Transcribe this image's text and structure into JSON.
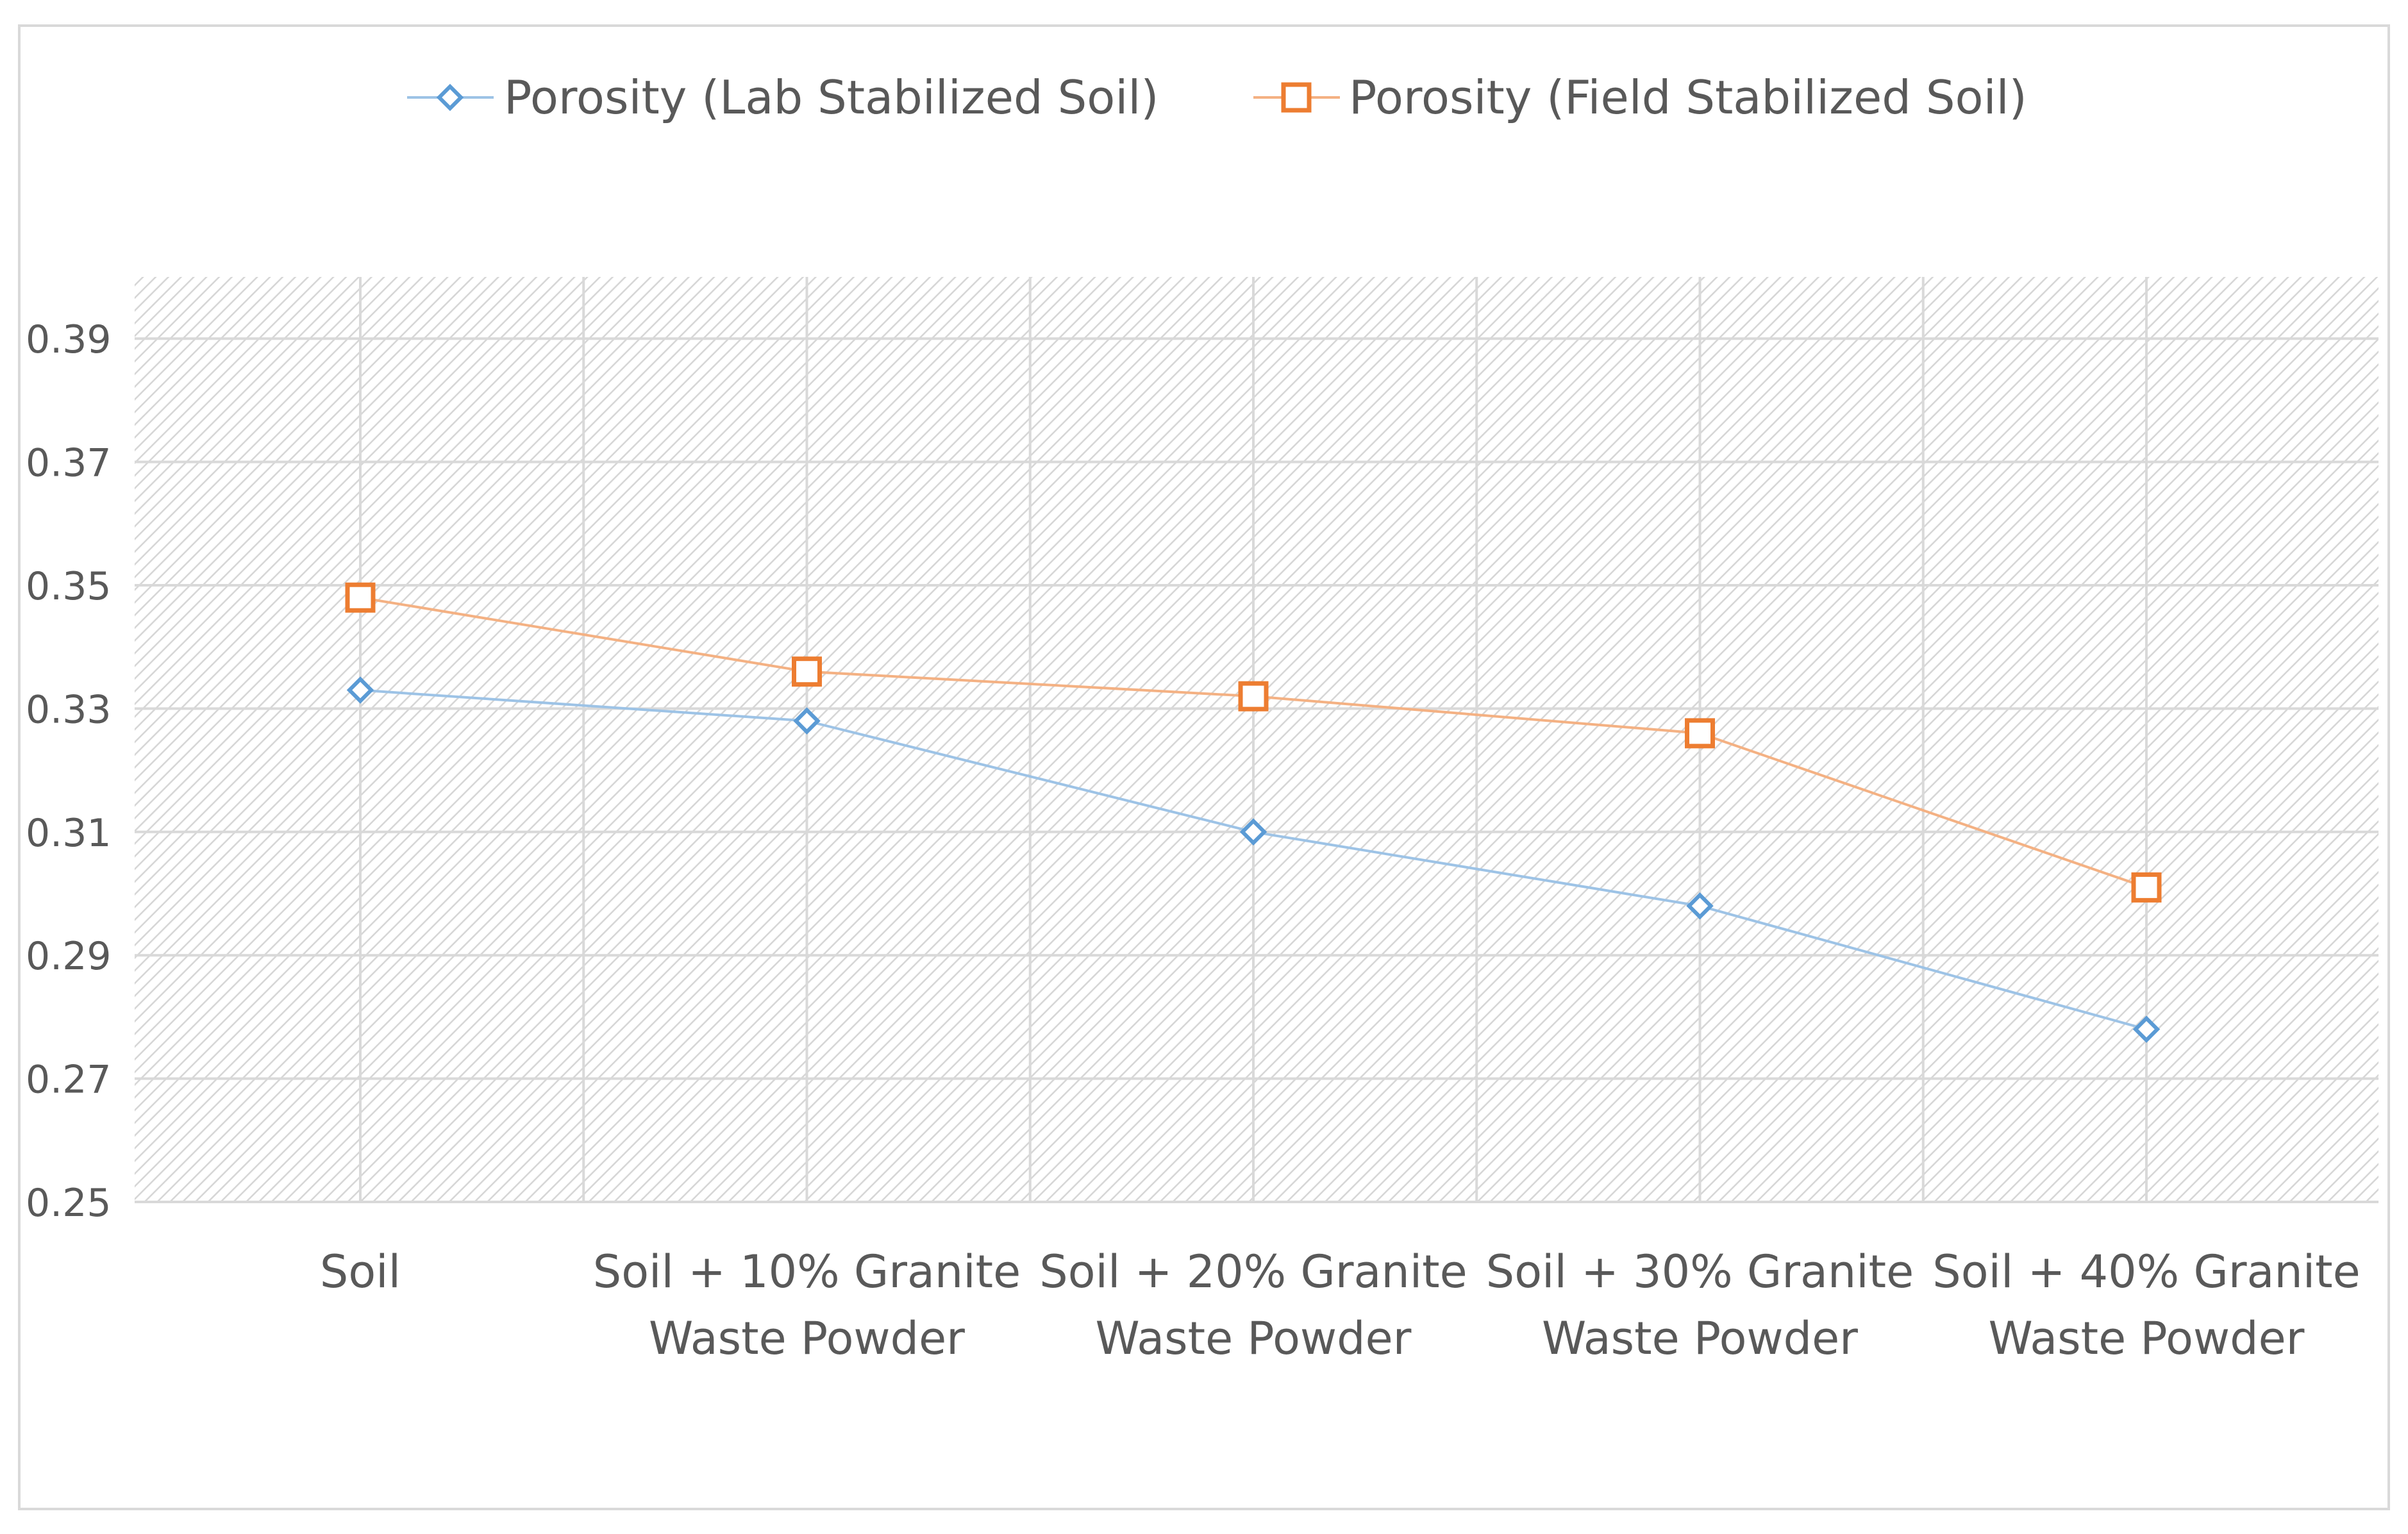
{
  "chart_data": {
    "type": "line",
    "categories": [
      [
        "Soil"
      ],
      [
        "Soil + 10% Granite",
        "Waste Powder"
      ],
      [
        "Soil + 20% Granite",
        "Waste Powder"
      ],
      [
        "Soil + 30% Granite",
        "Waste Powder"
      ],
      [
        "Soil + 40% Granite",
        "Waste Powder"
      ]
    ],
    "series": [
      {
        "name": "Porosity (Lab Stabilized Soil)",
        "marker": "diamond",
        "color": "#5b9bd5",
        "line_color": "#9dc3e6",
        "values": [
          0.333,
          0.328,
          0.31,
          0.298,
          0.278
        ]
      },
      {
        "name": "Porosity (Field Stabilized Soil)",
        "marker": "square",
        "color": "#ed7d31",
        "line_color": "#f4b183",
        "values": [
          0.348,
          0.336,
          0.332,
          0.326,
          0.301
        ]
      }
    ],
    "ylim": [
      0.25,
      0.4
    ],
    "yticks": [
      "0.25",
      "0.27",
      "0.29",
      "0.31",
      "0.33",
      "0.35",
      "0.37",
      "0.39"
    ],
    "grid": true,
    "plot_background": "hatched",
    "legend_position": "top-center",
    "title": "",
    "xlabel": "",
    "ylabel": ""
  }
}
